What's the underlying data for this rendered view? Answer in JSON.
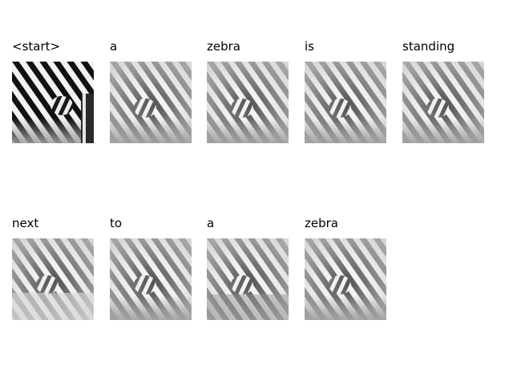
{
  "caption_words": [
    "<start>",
    "a",
    "zebra",
    "is",
    "standing",
    "next",
    "to",
    "a",
    "zebra"
  ],
  "panels": [
    {
      "word": "<start>",
      "image": "zebra-photo-original"
    },
    {
      "word": "a",
      "image": "zebra-attention-map"
    },
    {
      "word": "zebra",
      "image": "zebra-attention-map"
    },
    {
      "word": "is",
      "image": "zebra-attention-map"
    },
    {
      "word": "standing",
      "image": "zebra-attention-map"
    },
    {
      "word": "next",
      "image": "zebra-attention-map"
    },
    {
      "word": "to",
      "image": "zebra-attention-map"
    },
    {
      "word": "a",
      "image": "zebra-attention-map"
    },
    {
      "word": "zebra",
      "image": "zebra-attention-map"
    }
  ]
}
